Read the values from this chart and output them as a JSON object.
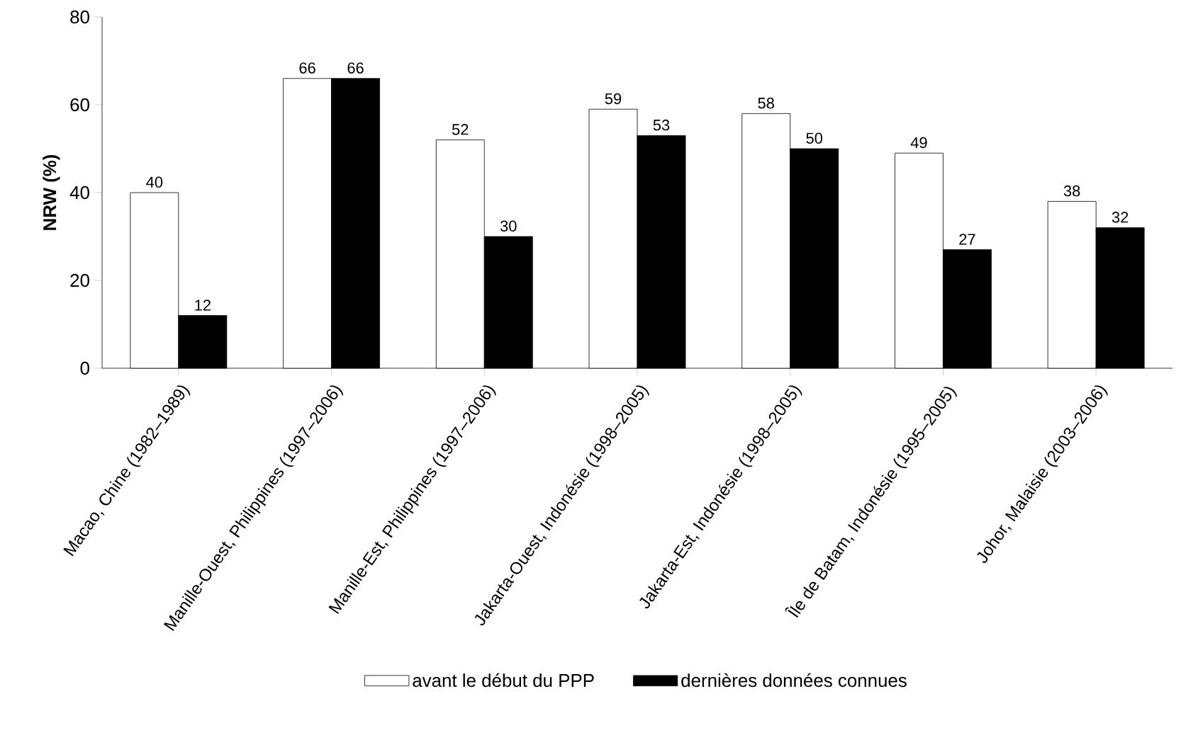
{
  "chart_data": {
    "type": "bar",
    "ylabel": "NRW (%)",
    "categories": [
      "Macao, Chine (1982–1989)",
      "Manille-Ouest, Philippines (1997–2006)",
      "Manille-Est, Philippines (1997–2006)",
      "Jakarta-Ouest, Indonésie (1998–2005)",
      "Jakarta-Est, Indonésie (1998–2005)",
      "Île de Batam, Indonésie (1995–2005)",
      "Johor, Malaisie (2003–2006)"
    ],
    "series": [
      {
        "name": "avant le début du PPP",
        "color": "#ffffff",
        "values": [
          40,
          66,
          52,
          59,
          58,
          49,
          38
        ]
      },
      {
        "name": "dernières données connues",
        "color": "#000000",
        "values": [
          12,
          66,
          30,
          53,
          50,
          27,
          32
        ]
      }
    ],
    "ylim": [
      0,
      80
    ],
    "yticks": [
      0,
      20,
      40,
      60,
      80
    ],
    "data_labels": true,
    "legend": "bottom",
    "grid": false
  }
}
